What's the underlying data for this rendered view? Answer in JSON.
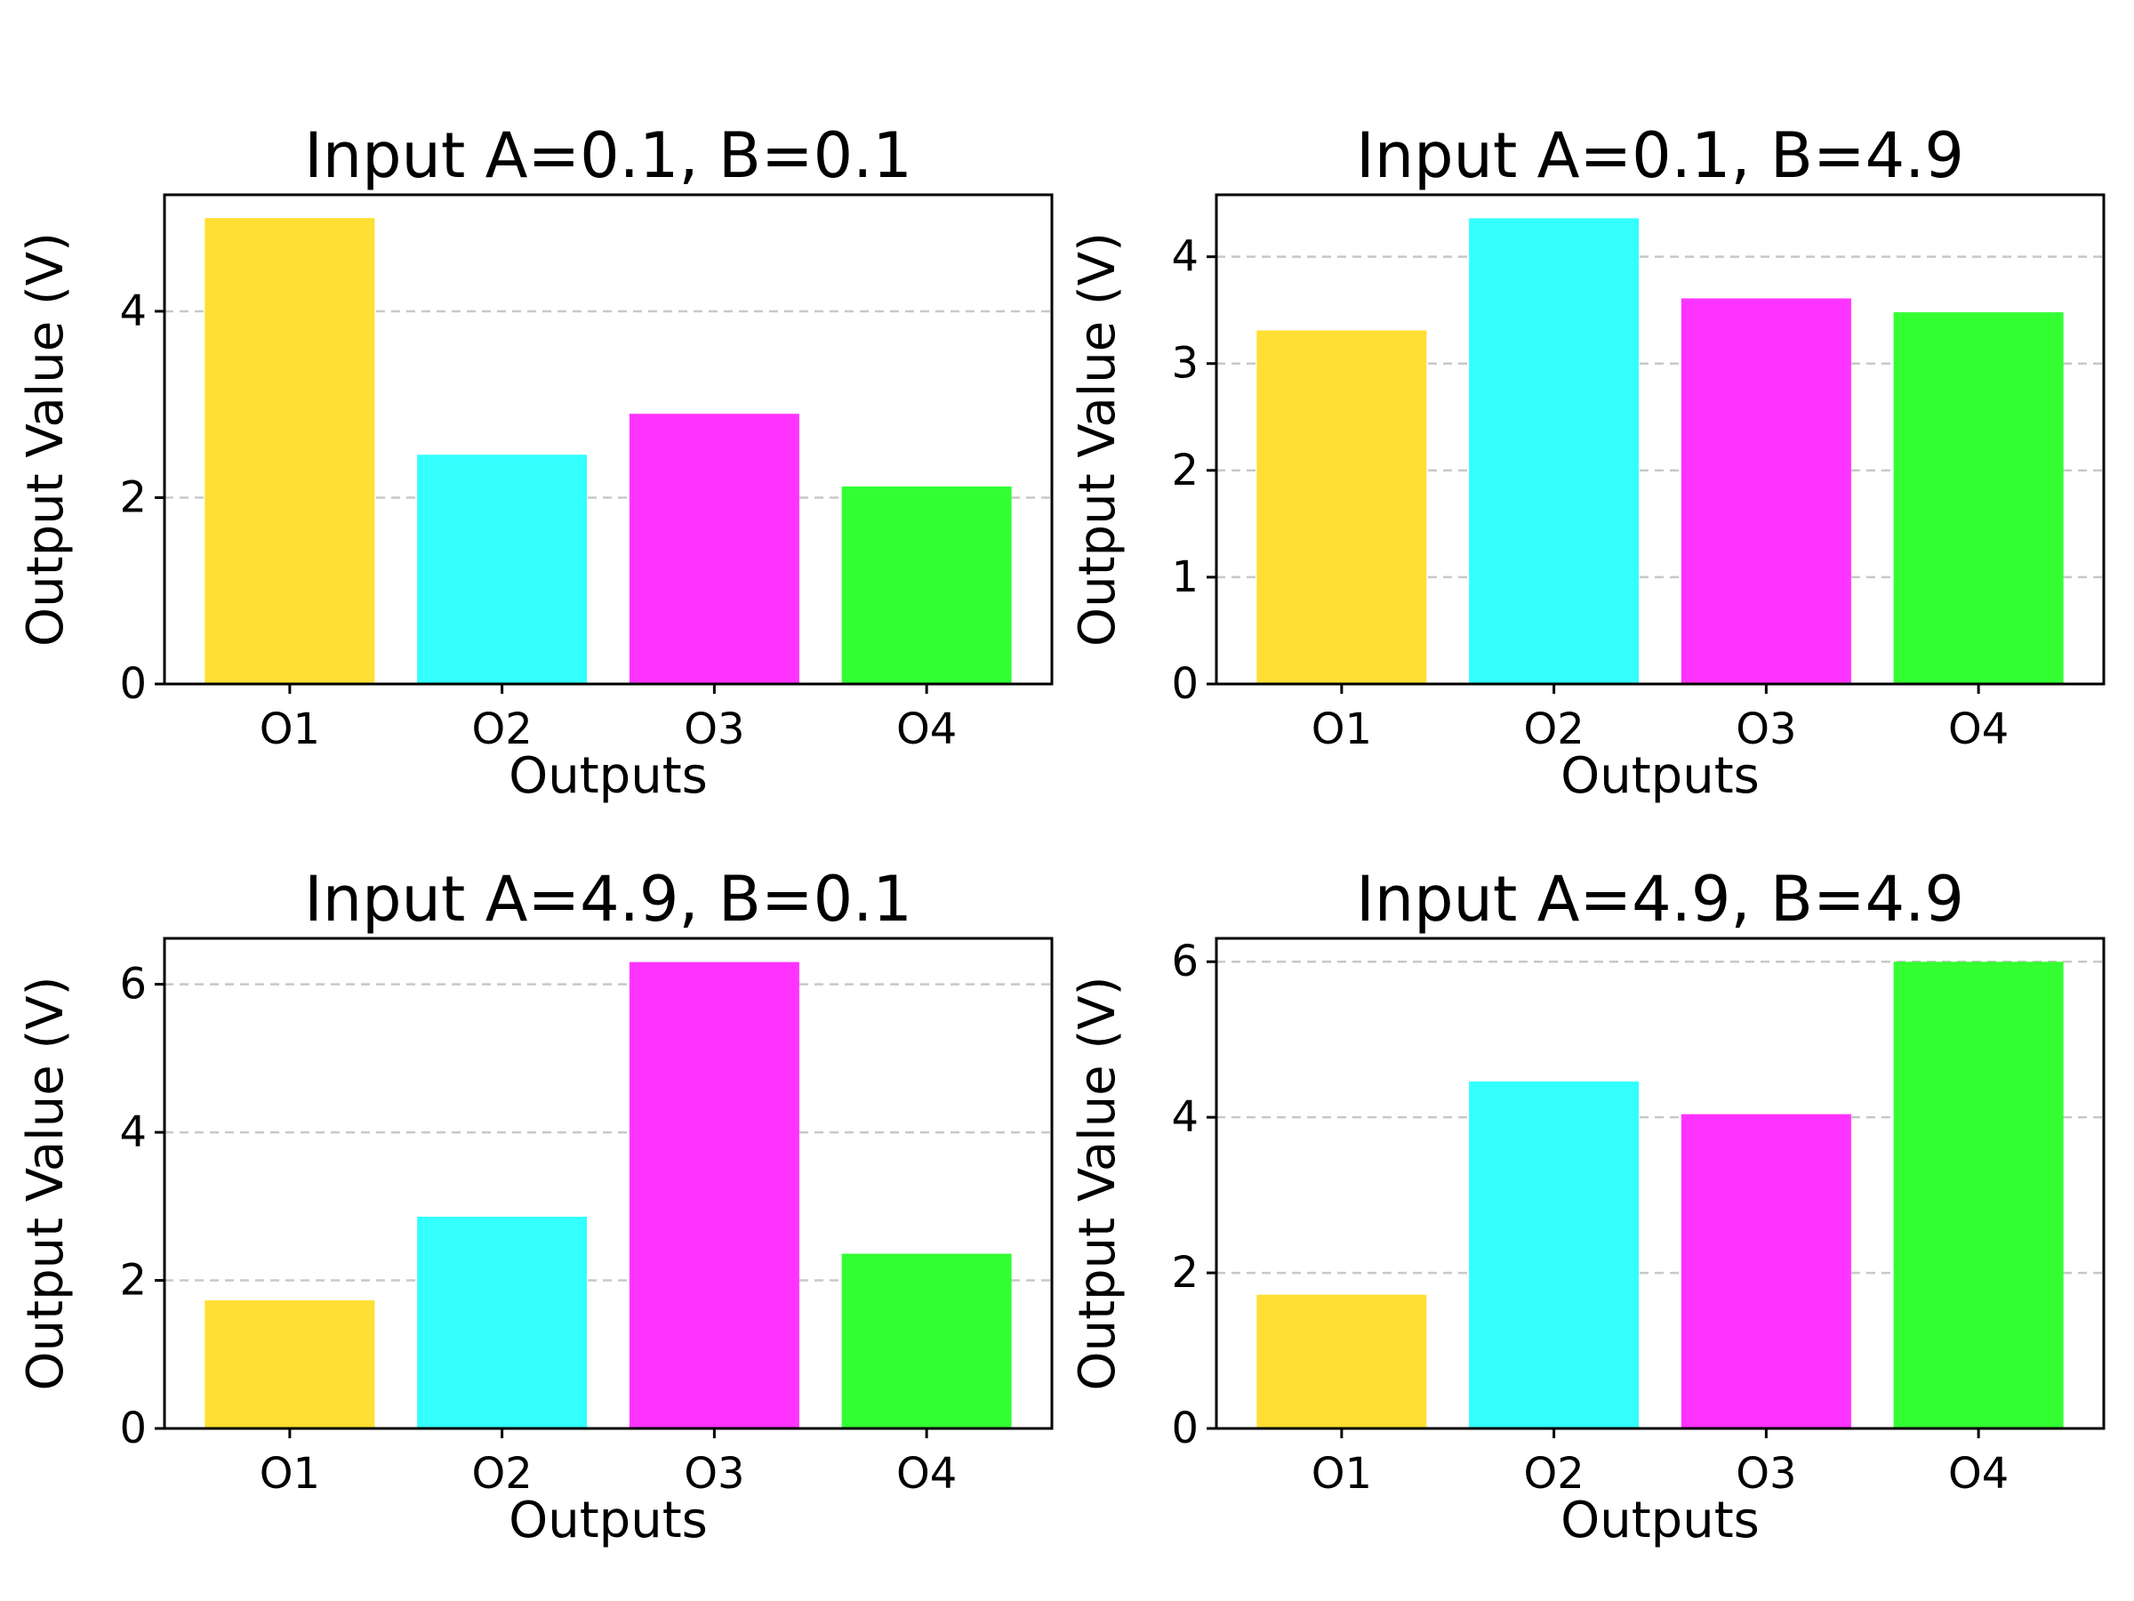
{
  "chart_data": [
    {
      "type": "bar",
      "title": "Input A=0.1, B=0.1",
      "xlabel": "Outputs",
      "ylabel": "Output Value (V)",
      "categories": [
        "O1",
        "O2",
        "O3",
        "O4"
      ],
      "values": [
        5.0,
        2.46,
        2.9,
        2.12
      ],
      "ylim": [
        0,
        5.25
      ],
      "yticks": [
        0,
        2,
        4
      ],
      "grid": "y-dashed",
      "colors": [
        "#ffdf33",
        "#33ffff",
        "#ff33ff",
        "#33ff33"
      ]
    },
    {
      "type": "bar",
      "title": "Input A=0.1, B=4.9",
      "xlabel": "Outputs",
      "ylabel": "Output Value (V)",
      "categories": [
        "O1",
        "O2",
        "O3",
        "O4"
      ],
      "values": [
        3.31,
        4.36,
        3.61,
        3.48
      ],
      "ylim": [
        0,
        4.58
      ],
      "yticks": [
        0,
        1,
        2,
        3,
        4
      ],
      "grid": "y-dashed",
      "colors": [
        "#ffdf33",
        "#33ffff",
        "#ff33ff",
        "#33ff33"
      ]
    },
    {
      "type": "bar",
      "title": "Input A=4.9, B=0.1",
      "xlabel": "Outputs",
      "ylabel": "Output Value (V)",
      "categories": [
        "O1",
        "O2",
        "O3",
        "O4"
      ],
      "values": [
        1.73,
        2.86,
        6.3,
        2.36
      ],
      "ylim": [
        0,
        6.62
      ],
      "yticks": [
        0,
        2,
        4,
        6
      ],
      "grid": "y-dashed",
      "colors": [
        "#ffdf33",
        "#33ffff",
        "#ff33ff",
        "#33ff33"
      ]
    },
    {
      "type": "bar",
      "title": "Input A=4.9, B=4.9",
      "xlabel": "Outputs",
      "ylabel": "Output Value (V)",
      "categories": [
        "O1",
        "O2",
        "O3",
        "O4"
      ],
      "values": [
        1.72,
        4.46,
        4.04,
        6.0
      ],
      "ylim": [
        0,
        6.3
      ],
      "yticks": [
        0,
        2,
        4,
        6
      ],
      "grid": "y-dashed",
      "colors": [
        "#ffdf33",
        "#33ffff",
        "#ff33ff",
        "#33ff33"
      ]
    }
  ]
}
